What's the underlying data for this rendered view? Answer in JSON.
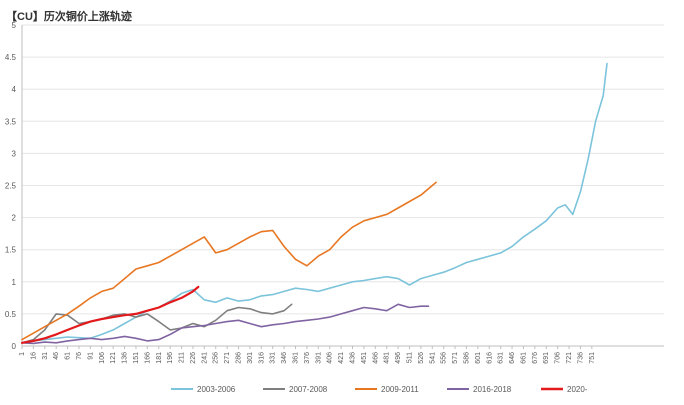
{
  "chart_data": {
    "type": "line",
    "title": "【CU】历次铜价上涨轨迹",
    "xlabel": "",
    "ylabel": "",
    "xlim": [
      1,
      846
    ],
    "ylim": [
      0,
      5
    ],
    "y_ticks": [
      0,
      0.5,
      1,
      1.5,
      2,
      2.5,
      3,
      3.5,
      4,
      4.5,
      5
    ],
    "x_ticks": [
      1,
      16,
      31,
      46,
      61,
      76,
      91,
      106,
      121,
      136,
      151,
      166,
      181,
      196,
      211,
      226,
      241,
      256,
      271,
      286,
      301,
      316,
      331,
      346,
      361,
      376,
      391,
      406,
      421,
      436,
      451,
      466,
      481,
      496,
      511,
      526,
      541,
      556,
      571,
      586,
      601,
      616,
      631,
      646,
      661,
      676,
      691,
      706,
      721,
      736,
      751
    ],
    "grid": true,
    "legend_position": "bottom",
    "series": [
      {
        "name": "2003-2006",
        "color": "#7cc4db",
        "width": 1.6,
        "x": [
          1,
          16,
          31,
          46,
          61,
          76,
          91,
          106,
          121,
          136,
          151,
          166,
          181,
          196,
          211,
          226,
          241,
          256,
          271,
          286,
          301,
          316,
          331,
          346,
          361,
          376,
          391,
          406,
          421,
          436,
          451,
          466,
          481,
          496,
          511,
          526,
          541,
          556,
          571,
          586,
          601,
          616,
          631,
          646,
          661,
          676,
          691,
          706,
          716,
          726,
          736,
          746,
          756,
          766,
          771
        ],
        "y": [
          0.05,
          0.08,
          0.1,
          0.12,
          0.14,
          0.13,
          0.12,
          0.18,
          0.25,
          0.35,
          0.45,
          0.55,
          0.6,
          0.7,
          0.82,
          0.88,
          0.72,
          0.68,
          0.75,
          0.7,
          0.72,
          0.78,
          0.8,
          0.85,
          0.9,
          0.88,
          0.85,
          0.9,
          0.95,
          1.0,
          1.02,
          1.05,
          1.08,
          1.05,
          0.95,
          1.05,
          1.1,
          1.15,
          1.22,
          1.3,
          1.35,
          1.4,
          1.45,
          1.55,
          1.7,
          1.82,
          1.95,
          2.15,
          2.2,
          2.05,
          2.4,
          2.9,
          3.5,
          3.9,
          4.4
        ]
      },
      {
        "name": "2007-2008",
        "color": "#7f7f7f",
        "width": 1.6,
        "x": [
          1,
          16,
          31,
          46,
          61,
          76,
          91,
          106,
          121,
          136,
          151,
          166,
          181,
          196,
          211,
          226,
          241,
          256,
          271,
          286,
          301,
          316,
          331,
          346,
          356
        ],
        "y": [
          0.05,
          0.1,
          0.25,
          0.5,
          0.48,
          0.35,
          0.38,
          0.42,
          0.48,
          0.5,
          0.45,
          0.5,
          0.38,
          0.25,
          0.28,
          0.35,
          0.3,
          0.4,
          0.55,
          0.6,
          0.58,
          0.52,
          0.5,
          0.55,
          0.65
        ]
      },
      {
        "name": "2009-2011",
        "color": "#e87722",
        "width": 1.6,
        "x": [
          1,
          16,
          31,
          46,
          61,
          76,
          91,
          106,
          121,
          136,
          151,
          166,
          181,
          196,
          211,
          226,
          241,
          256,
          271,
          286,
          301,
          316,
          331,
          346,
          361,
          376,
          391,
          406,
          421,
          436,
          451,
          466,
          481,
          496,
          511,
          526,
          541,
          546
        ],
        "y": [
          0.1,
          0.2,
          0.3,
          0.4,
          0.5,
          0.62,
          0.75,
          0.85,
          0.9,
          1.05,
          1.2,
          1.25,
          1.3,
          1.4,
          1.5,
          1.6,
          1.7,
          1.45,
          1.5,
          1.6,
          1.7,
          1.78,
          1.8,
          1.55,
          1.35,
          1.25,
          1.4,
          1.5,
          1.7,
          1.85,
          1.95,
          2.0,
          2.05,
          2.15,
          2.25,
          2.35,
          2.5,
          2.55
        ]
      },
      {
        "name": "2016-2018",
        "color": "#8064a2",
        "width": 1.6,
        "x": [
          1,
          16,
          31,
          46,
          61,
          76,
          91,
          106,
          121,
          136,
          151,
          166,
          181,
          196,
          211,
          226,
          241,
          256,
          271,
          286,
          301,
          316,
          331,
          346,
          361,
          376,
          391,
          406,
          421,
          436,
          451,
          466,
          481,
          496,
          511,
          526,
          536
        ],
        "y": [
          0.05,
          0.04,
          0.06,
          0.05,
          0.08,
          0.1,
          0.12,
          0.1,
          0.12,
          0.15,
          0.12,
          0.08,
          0.1,
          0.18,
          0.28,
          0.3,
          0.32,
          0.35,
          0.38,
          0.4,
          0.35,
          0.3,
          0.33,
          0.35,
          0.38,
          0.4,
          0.42,
          0.45,
          0.5,
          0.55,
          0.6,
          0.58,
          0.55,
          0.65,
          0.6,
          0.62,
          0.62
        ]
      },
      {
        "name": "2020-",
        "color": "#e31a1c",
        "width": 2.2,
        "x": [
          1,
          16,
          31,
          46,
          61,
          76,
          91,
          106,
          121,
          136,
          151,
          166,
          181,
          196,
          211,
          226,
          233
        ],
        "y": [
          0.05,
          0.08,
          0.12,
          0.18,
          0.25,
          0.32,
          0.38,
          0.42,
          0.45,
          0.48,
          0.5,
          0.55,
          0.6,
          0.68,
          0.75,
          0.85,
          0.92
        ]
      }
    ]
  }
}
